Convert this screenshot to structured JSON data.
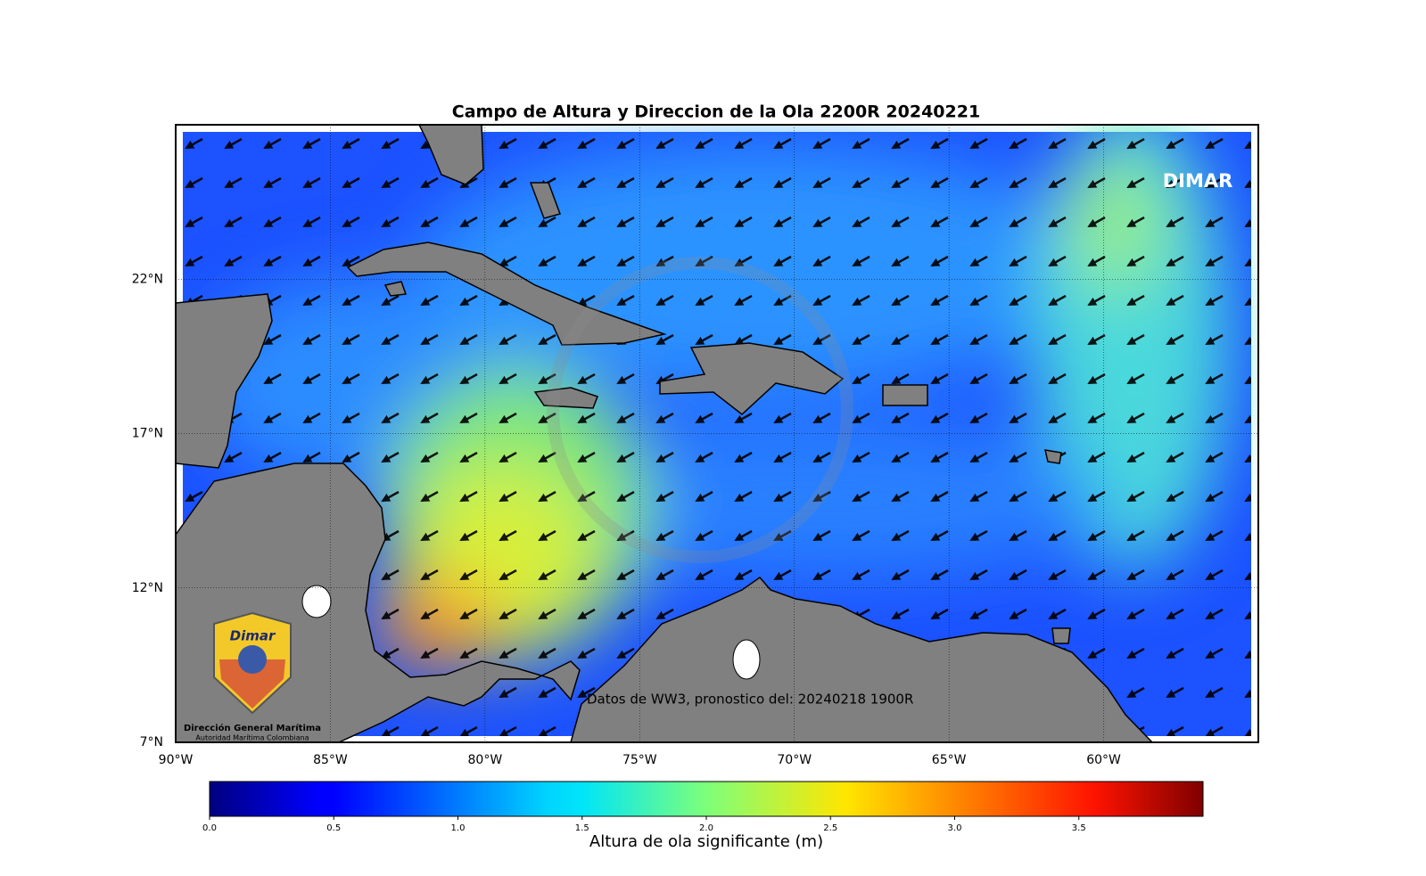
{
  "chart_data": {
    "type": "map",
    "title": "Campo de Altura y Direccion de la Ola 2200R 20240221",
    "xlim": [
      -90,
      -55
    ],
    "ylim": [
      7,
      27
    ],
    "xticks": [
      {
        "value": -90,
        "label": "90°W"
      },
      {
        "value": -85,
        "label": "85°W"
      },
      {
        "value": -80,
        "label": "80°W"
      },
      {
        "value": -75,
        "label": "75°W"
      },
      {
        "value": -70,
        "label": "70°W"
      },
      {
        "value": -65,
        "label": "65°W"
      },
      {
        "value": -60,
        "label": "60°W"
      }
    ],
    "yticks": [
      {
        "value": 7,
        "label": "7°N"
      },
      {
        "value": 12,
        "label": "12°N"
      },
      {
        "value": 17,
        "label": "17°N"
      },
      {
        "value": 22,
        "label": "22°N"
      }
    ],
    "grid": true,
    "colorbar": {
      "label": "Altura de ola significante (m)",
      "lim": [
        0,
        4
      ],
      "colormap": "jet",
      "ticks": [
        {
          "value": 0,
          "label": "0.0"
        },
        {
          "value": 0.5,
          "label": "0.5"
        },
        {
          "value": 1,
          "label": "1.0"
        },
        {
          "value": 1.5,
          "label": "1.5"
        },
        {
          "value": 2,
          "label": "2.0"
        },
        {
          "value": 2.5,
          "label": "2.5"
        },
        {
          "value": 3,
          "label": "3.0"
        },
        {
          "value": 3.5,
          "label": "3.5"
        }
      ]
    },
    "watermark": "DIMAR",
    "note": "Datos de WW3, pronostico del: 20240218 1900R",
    "logo": {
      "brand": "Dimar",
      "name": "Dirección General Marítima",
      "subtitle": "Autoridad Marítima Colombiana"
    }
  }
}
